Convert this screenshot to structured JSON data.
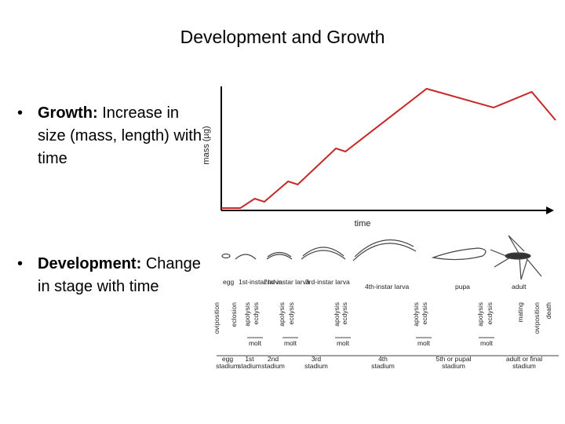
{
  "slide": {
    "title": "Development and Growth"
  },
  "bullets": [
    {
      "bullet": "•",
      "term": "Growth:",
      "text": "Increase in size (mass, length) with time"
    },
    {
      "bullet": "•",
      "term": "Development:",
      "text": "Change in stage with time"
    }
  ],
  "chart_data": {
    "type": "line",
    "title": "",
    "xlabel": "time",
    "ylabel": "mass (µg)",
    "x": [
      0,
      4,
      7,
      9,
      14,
      16,
      24,
      26,
      43,
      57,
      65,
      70
    ],
    "series": [
      {
        "name": "",
        "values": [
          0,
          0,
          6,
          4,
          17,
          15,
          38,
          36,
          76,
          64,
          74,
          56
        ]
      }
    ],
    "xlim": [
      0,
      70
    ],
    "ylim": [
      0,
      80
    ],
    "grid": false,
    "line_color": "#c62828"
  },
  "timeline": {
    "stages": [
      {
        "id": "egg",
        "label": "egg"
      },
      {
        "id": "first-instar",
        "label": "1st-instar larva"
      },
      {
        "id": "second-instar",
        "label": "2nd-instar larva"
      },
      {
        "id": "third-instar",
        "label": "3rd-instar larva"
      },
      {
        "id": "fourth-instar",
        "label": "4th-instar larva"
      },
      {
        "id": "pupa",
        "label": "pupa"
      },
      {
        "id": "adult",
        "label": "adult"
      }
    ],
    "events": [
      "oviposition",
      "eclosion",
      "apolysis",
      "ecdysis",
      "apolysis",
      "ecdysis",
      "apolysis",
      "ecdysis",
      "apolysis",
      "ecdysis",
      "apolysis",
      "ecdysis",
      "mating",
      "oviposition",
      "death"
    ],
    "molts": [
      "molt",
      "molt",
      "molt",
      "molt",
      "molt"
    ],
    "stadia": [
      "egg stadium",
      "1st stadium",
      "2nd stadium",
      "3rd stadium",
      "4th stadium",
      "5th or pupal stadium",
      "adult or final stadium"
    ]
  }
}
